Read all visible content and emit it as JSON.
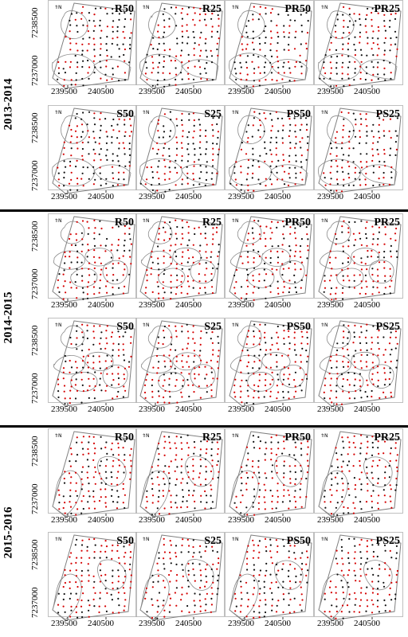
{
  "figure": {
    "north_arrow_label": "N",
    "x_ticks": [
      "239500",
      "240500"
    ],
    "y_ticks": [
      "7238500",
      "7237000"
    ],
    "seasons": [
      {
        "label": "2013-2014",
        "rows": [
          [
            "R50",
            "R25",
            "PR50",
            "PR25"
          ],
          [
            "S50",
            "S25",
            "PS50",
            "PS25"
          ]
        ]
      },
      {
        "label": "2014-2015",
        "rows": [
          [
            "R50",
            "R25",
            "PR50",
            "PR25"
          ],
          [
            "S50",
            "S25",
            "PS50",
            "PS25"
          ]
        ]
      },
      {
        "label": "2015-2016",
        "rows": [
          [
            "R50",
            "R25",
            "PR50",
            "PR25"
          ],
          [
            "S50",
            "S25",
            "PS50",
            "PS25"
          ]
        ]
      }
    ],
    "colors": {
      "boundary": "#7f7f7f",
      "zone_outline": "#8a8a8a",
      "point_dark": "#111111",
      "point_red": "#d40000",
      "separator": "#000000"
    }
  }
}
